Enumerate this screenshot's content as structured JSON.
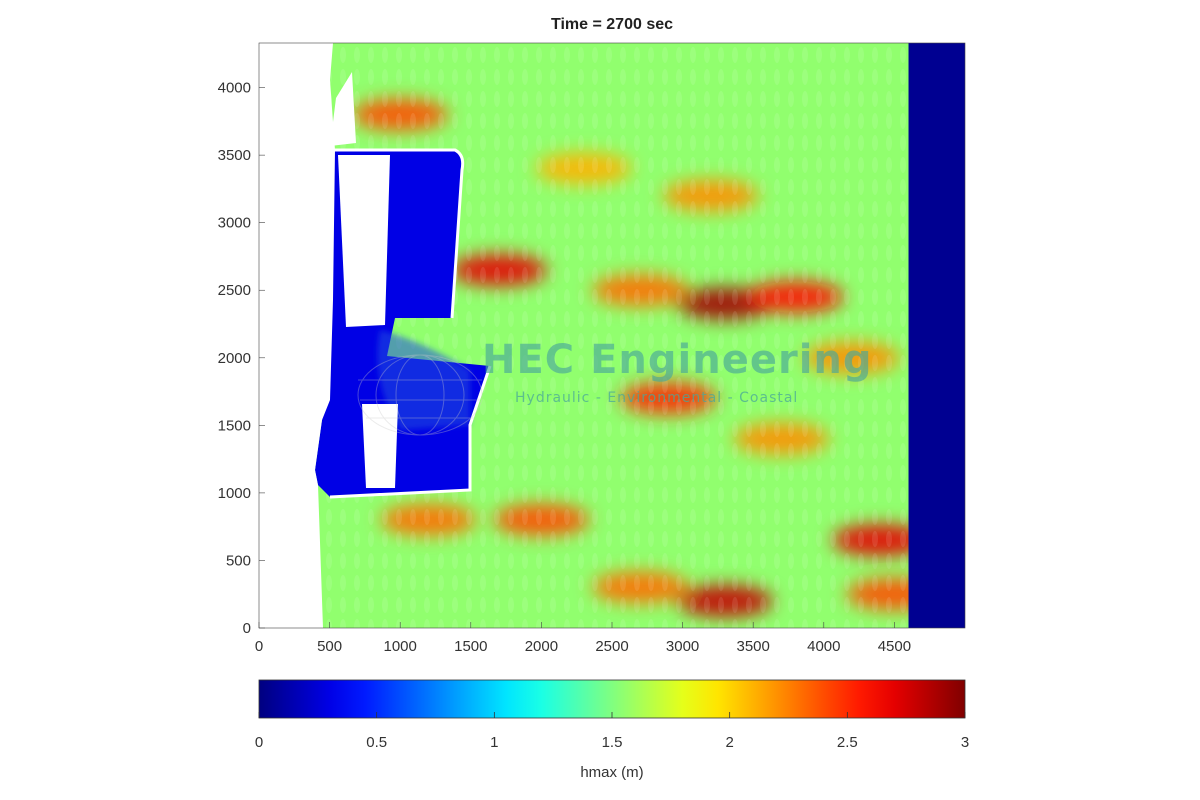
{
  "chart_data": {
    "type": "heatmap",
    "title": "Time = 2700 sec",
    "xlim": [
      0,
      5000
    ],
    "ylim": [
      0,
      4330
    ],
    "x_ticks": [
      "0",
      "500",
      "1000",
      "1500",
      "2000",
      "2500",
      "3000",
      "3500",
      "4000",
      "4500"
    ],
    "y_ticks": [
      "0",
      "500",
      "1000",
      "1500",
      "2000",
      "2500",
      "3000",
      "3500",
      "4000"
    ],
    "colorbar": {
      "label": "hmax (m)",
      "min": 0,
      "max": 3,
      "ticks": [
        "0",
        "0.5",
        "1",
        "1.5",
        "2",
        "2.5",
        "3"
      ],
      "colormap": "jet"
    },
    "background_level": 1.55,
    "deep_water_zone": {
      "x_from": 4600,
      "x_to": 5000,
      "value": 0.05
    },
    "hotspots": [
      {
        "x": 3300,
        "y": 2400,
        "value": 2.9
      },
      {
        "x": 1700,
        "y": 2650,
        "value": 2.7
      },
      {
        "x": 3800,
        "y": 2450,
        "value": 2.6
      },
      {
        "x": 1000,
        "y": 3800,
        "value": 2.4
      },
      {
        "x": 3300,
        "y": 200,
        "value": 2.8
      },
      {
        "x": 4400,
        "y": 650,
        "value": 2.7
      },
      {
        "x": 2900,
        "y": 1700,
        "value": 2.5
      },
      {
        "x": 2000,
        "y": 800,
        "value": 2.4
      },
      {
        "x": 1200,
        "y": 800,
        "value": 2.3
      },
      {
        "x": 2700,
        "y": 2500,
        "value": 2.3
      },
      {
        "x": 3200,
        "y": 3200,
        "value": 2.2
      },
      {
        "x": 2300,
        "y": 3400,
        "value": 2.1
      },
      {
        "x": 4200,
        "y": 2000,
        "value": 2.2
      },
      {
        "x": 3700,
        "y": 1400,
        "value": 2.2
      },
      {
        "x": 2700,
        "y": 300,
        "value": 2.3
      },
      {
        "x": 4500,
        "y": 250,
        "value": 2.4
      }
    ],
    "harbor_zone": {
      "value": 0.3
    }
  },
  "watermark": {
    "main": "HEC Engineering",
    "sub": "Hydraulic - Environmental - Coastal"
  }
}
